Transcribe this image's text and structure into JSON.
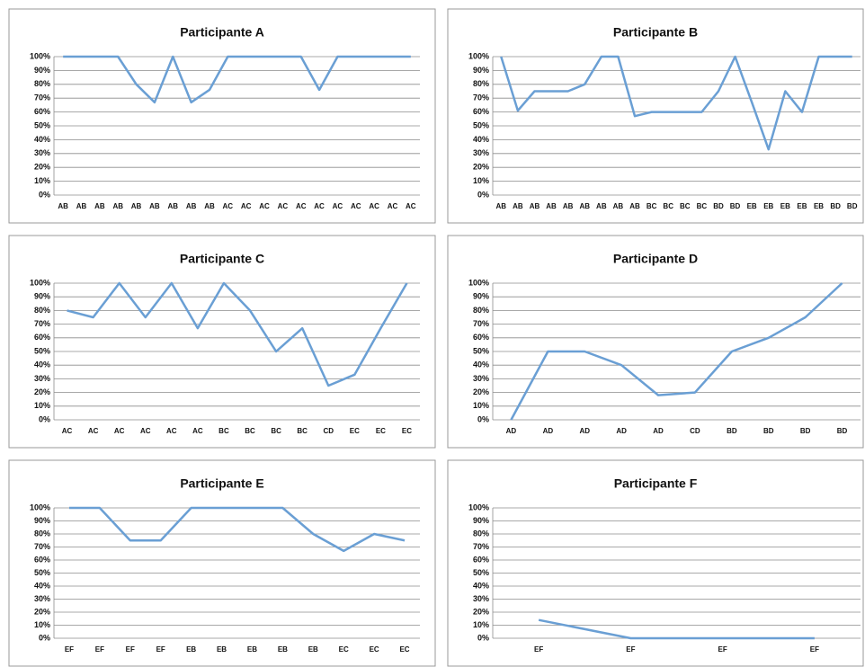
{
  "chart_data": [
    {
      "type": "line",
      "title": "Participante A",
      "color": "#6a9fd4",
      "grid": true,
      "categories": [
        "AB",
        "AB",
        "AB",
        "AB",
        "AB",
        "AB",
        "AB",
        "AB",
        "AB",
        "AC",
        "AC",
        "AC",
        "AC",
        "AC",
        "AC",
        "AC",
        "AC",
        "AC",
        "AC",
        "AC"
      ],
      "values": [
        100,
        100,
        100,
        100,
        80,
        67,
        100,
        67,
        76,
        100,
        100,
        100,
        100,
        100,
        76,
        100,
        100,
        100,
        100,
        100
      ],
      "ylim": [
        0,
        100
      ],
      "yticks": [
        {
          "value": 0,
          "label": "0%"
        },
        {
          "value": 10,
          "label": "10%"
        },
        {
          "value": 20,
          "label": "20%"
        },
        {
          "value": 30,
          "label": "30%"
        },
        {
          "value": 40,
          "label": "40%"
        },
        {
          "value": 50,
          "label": "50%"
        },
        {
          "value": 60,
          "label": "60%"
        },
        {
          "value": 70,
          "label": "70%"
        },
        {
          "value": 80,
          "label": "80%"
        },
        {
          "value": 90,
          "label": "90%"
        },
        {
          "value": 100,
          "label": "100%"
        }
      ]
    },
    {
      "type": "line",
      "title": "Participante B",
      "color": "#6a9fd4",
      "grid": true,
      "categories": [
        "AB",
        "AB",
        "AB",
        "AB",
        "AB",
        "AB",
        "AB",
        "AB",
        "AB",
        "BC",
        "BC",
        "BC",
        "BC",
        "BD",
        "BD",
        "EB",
        "EB",
        "EB",
        "EB",
        "EB",
        "BD",
        "BD"
      ],
      "values": [
        100,
        61,
        75,
        75,
        75,
        80,
        100,
        100,
        57,
        60,
        60,
        60,
        60,
        75,
        100,
        67,
        33,
        75,
        60,
        100,
        100,
        100
      ],
      "ylim": [
        0,
        100
      ],
      "yticks": [
        {
          "value": 0,
          "label": "0%"
        },
        {
          "value": 10,
          "label": "10%"
        },
        {
          "value": 20,
          "label": "20%"
        },
        {
          "value": 30,
          "label": "30%"
        },
        {
          "value": 40,
          "label": "40%"
        },
        {
          "value": 50,
          "label": "50%"
        },
        {
          "value": 60,
          "label": "60%"
        },
        {
          "value": 70,
          "label": "70%"
        },
        {
          "value": 80,
          "label": "80%"
        },
        {
          "value": 90,
          "label": "90%"
        },
        {
          "value": 100,
          "label": "100%"
        }
      ]
    },
    {
      "type": "line",
      "title": "Participante C",
      "color": "#6a9fd4",
      "grid": true,
      "categories": [
        "AC",
        "AC",
        "AC",
        "AC",
        "AC",
        "AC",
        "BC",
        "BC",
        "BC",
        "BC",
        "CD",
        "EC",
        "EC",
        "EC"
      ],
      "values": [
        80,
        75,
        100,
        75,
        100,
        67,
        100,
        80,
        50,
        67,
        25,
        33,
        67,
        100
      ],
      "ylim": [
        0,
        100
      ],
      "yticks": [
        {
          "value": 0,
          "label": "0%"
        },
        {
          "value": 10,
          "label": "10%"
        },
        {
          "value": 20,
          "label": "20%"
        },
        {
          "value": 30,
          "label": "30%"
        },
        {
          "value": 40,
          "label": "40%"
        },
        {
          "value": 50,
          "label": "50%"
        },
        {
          "value": 60,
          "label": "60%"
        },
        {
          "value": 70,
          "label": "70%"
        },
        {
          "value": 80,
          "label": "80%"
        },
        {
          "value": 90,
          "label": "90%"
        },
        {
          "value": 100,
          "label": "100%"
        }
      ]
    },
    {
      "type": "line",
      "title": "Participante D",
      "color": "#6a9fd4",
      "grid": true,
      "categories": [
        "AD",
        "AD",
        "AD",
        "AD",
        "AD",
        "CD",
        "BD",
        "BD",
        "BD",
        "BD"
      ],
      "values": [
        0,
        50,
        50,
        40,
        18,
        20,
        50,
        60,
        75,
        100
      ],
      "ylim": [
        0,
        100
      ],
      "yticks": [
        {
          "value": 0,
          "label": "0%"
        },
        {
          "value": 10,
          "label": "10%"
        },
        {
          "value": 20,
          "label": "20%"
        },
        {
          "value": 30,
          "label": "30%"
        },
        {
          "value": 40,
          "label": "40%"
        },
        {
          "value": 50,
          "label": "50%"
        },
        {
          "value": 60,
          "label": "60%"
        },
        {
          "value": 70,
          "label": "70%"
        },
        {
          "value": 80,
          "label": "80%"
        },
        {
          "value": 90,
          "label": "90%"
        },
        {
          "value": 100,
          "label": "100%"
        }
      ]
    },
    {
      "type": "line",
      "title": "Participante E",
      "color": "#6a9fd4",
      "grid": true,
      "categories": [
        "EF",
        "EF",
        "EF",
        "EF",
        "EB",
        "EB",
        "EB",
        "EB",
        "EB",
        "EC",
        "EC",
        "EC"
      ],
      "values": [
        100,
        100,
        75,
        75,
        100,
        100,
        100,
        100,
        80,
        67,
        80,
        75
      ],
      "ylim": [
        0,
        100
      ],
      "yticks": [
        {
          "value": 0,
          "label": "0%"
        },
        {
          "value": 10,
          "label": "10%"
        },
        {
          "value": 20,
          "label": "20%"
        },
        {
          "value": 30,
          "label": "30%"
        },
        {
          "value": 40,
          "label": "40%"
        },
        {
          "value": 50,
          "label": "50%"
        },
        {
          "value": 60,
          "label": "60%"
        },
        {
          "value": 70,
          "label": "70%"
        },
        {
          "value": 80,
          "label": "80%"
        },
        {
          "value": 90,
          "label": "90%"
        },
        {
          "value": 100,
          "label": "100%"
        }
      ]
    },
    {
      "type": "line",
      "title": "Participante F",
      "color": "#6a9fd4",
      "grid": true,
      "categories": [
        "EF",
        "EF",
        "EF",
        "EF"
      ],
      "values": [
        14,
        0,
        0,
        0
      ],
      "ylim": [
        0,
        100
      ],
      "yticks": [
        {
          "value": 0,
          "label": "0%"
        },
        {
          "value": 10,
          "label": "10%"
        },
        {
          "value": 20,
          "label": "20%"
        },
        {
          "value": 30,
          "label": "30%"
        },
        {
          "value": 40,
          "label": "40%"
        },
        {
          "value": 50,
          "label": "50%"
        },
        {
          "value": 60,
          "label": "60%"
        },
        {
          "value": 70,
          "label": "70%"
        },
        {
          "value": 80,
          "label": "80%"
        },
        {
          "value": 90,
          "label": "90%"
        },
        {
          "value": 100,
          "label": "100%"
        }
      ]
    }
  ]
}
